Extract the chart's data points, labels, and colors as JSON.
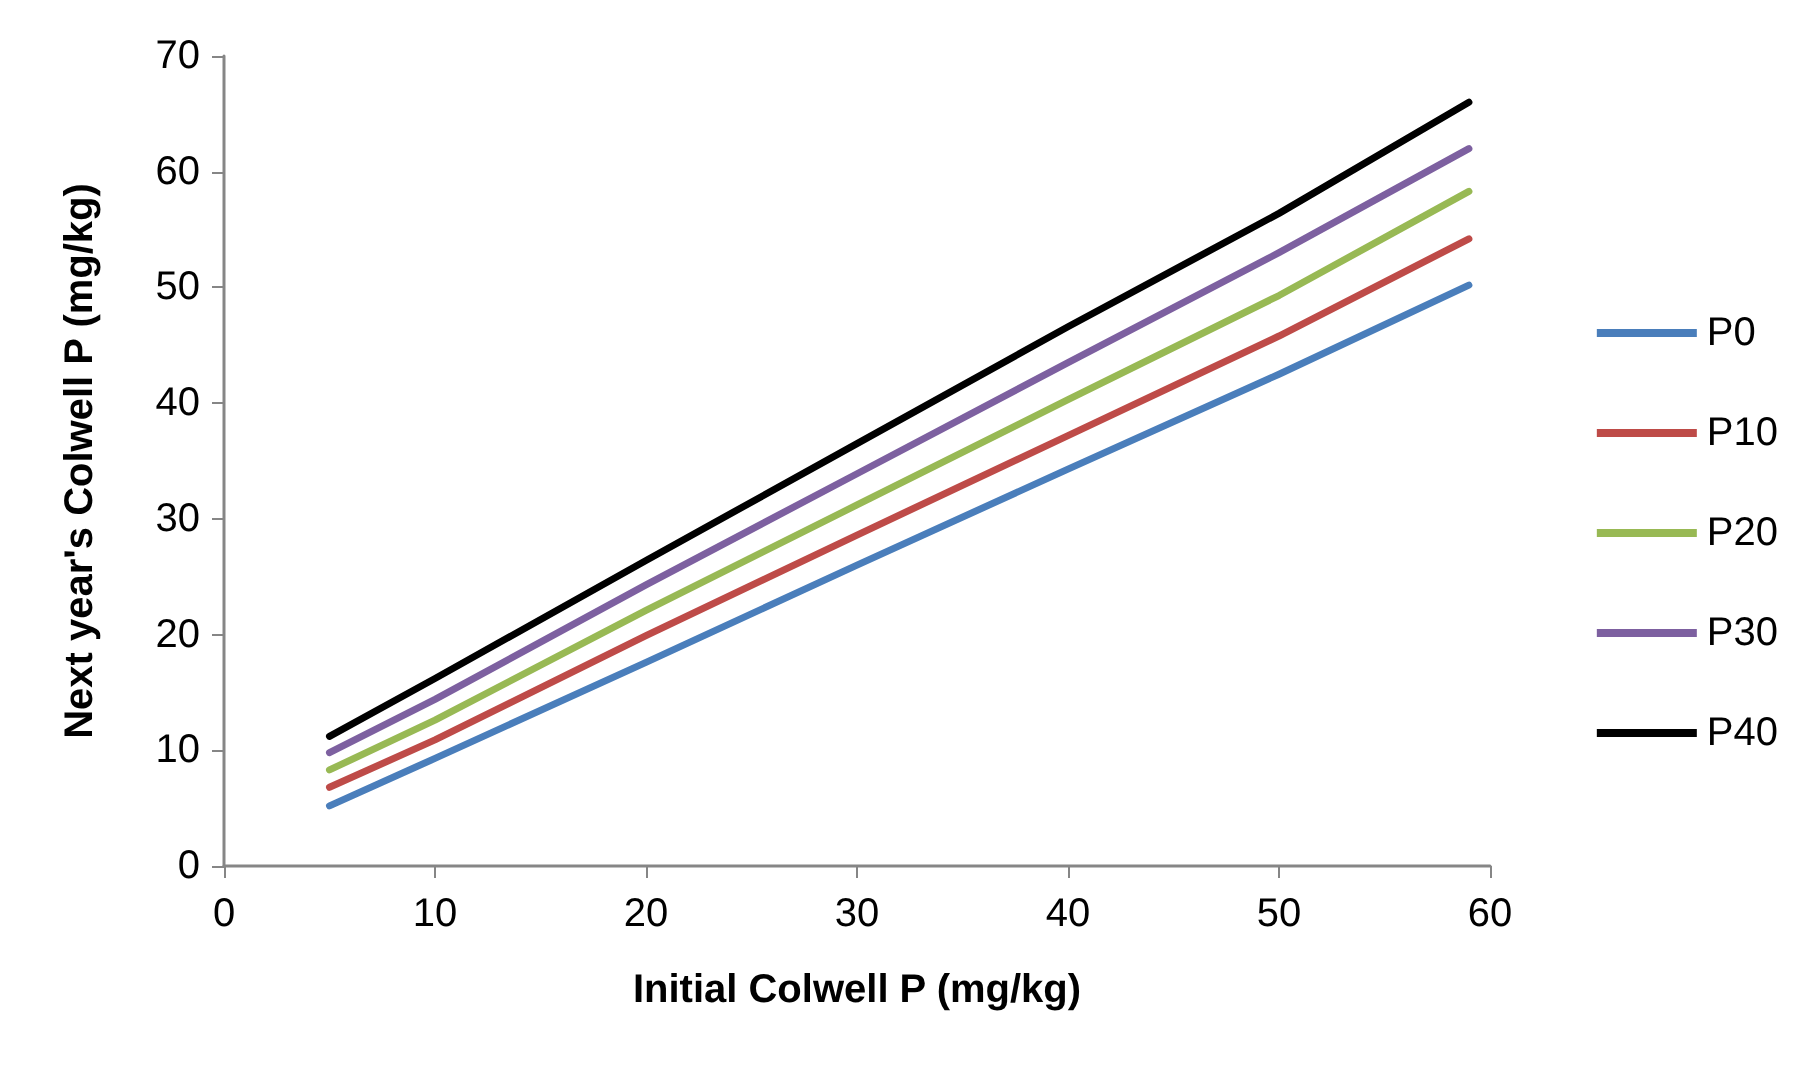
{
  "chart_data": {
    "type": "line",
    "xlabel": "Initial Colwell P (mg/kg)",
    "ylabel": "Next year's Colwell P (mg/kg)",
    "xlim": [
      0,
      60
    ],
    "xticks": [
      0,
      10,
      20,
      30,
      40,
      50,
      60
    ],
    "ylim": [
      0,
      70
    ],
    "yticks": [
      0,
      10,
      20,
      30,
      40,
      50,
      60,
      70
    ],
    "grid": false,
    "legend": "right",
    "marker": "none",
    "line_style": "solid",
    "series": [
      {
        "name": "P0",
        "color": "#4a7ebb",
        "x": [
          5,
          10,
          20,
          30,
          40,
          50,
          59
        ],
        "values": [
          5.2,
          9.3,
          17.6,
          26,
          34.3,
          42.5,
          50.2
        ]
      },
      {
        "name": "P10",
        "color": "#be4b48",
        "x": [
          5,
          10,
          20,
          30,
          40,
          50,
          59
        ],
        "values": [
          6.8,
          10.9,
          19.9,
          28.6,
          37.2,
          45.8,
          54.2
        ]
      },
      {
        "name": "P20",
        "color": "#98b954",
        "x": [
          5,
          10,
          20,
          30,
          40,
          50,
          59
        ],
        "values": [
          8.3,
          12.6,
          22.1,
          31.2,
          40.3,
          49.3,
          58.3
        ]
      },
      {
        "name": "P30",
        "color": "#7d60a0",
        "x": [
          5,
          10,
          20,
          30,
          40,
          50,
          59
        ],
        "values": [
          9.8,
          14.4,
          24.3,
          33.9,
          43.5,
          53,
          62
        ]
      },
      {
        "name": "P40",
        "color": "#000000",
        "x": [
          5,
          10,
          20,
          30,
          40,
          50,
          59
        ],
        "values": [
          11.2,
          16.2,
          26.4,
          36.5,
          46.6,
          56.4,
          66
        ]
      }
    ]
  }
}
